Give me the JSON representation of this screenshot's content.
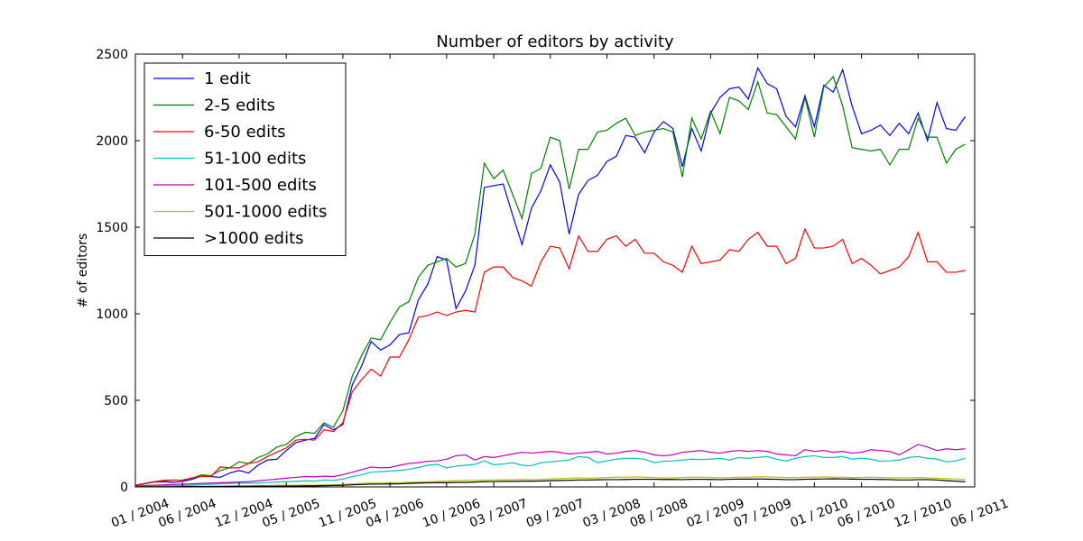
{
  "chart_data": {
    "type": "line",
    "title": "Number of editors by activity",
    "xlabel": "",
    "ylabel": "# of editors",
    "ylim": [
      0,
      2500
    ],
    "y_ticks": [
      0,
      500,
      1000,
      1500,
      2000,
      2500
    ],
    "x_tick_labels": [
      "01 / 2004",
      "06 / 2004",
      "12 / 2004",
      "05 / 2005",
      "11 / 2005",
      "04 / 2006",
      "10 / 2006",
      "03 / 2007",
      "09 / 2007",
      "03 / 2008",
      "08 / 2008",
      "02 / 2009",
      "07 / 2009",
      "01 / 2010",
      "06 / 2010",
      "12 / 2010",
      "06 / 2011"
    ],
    "x_tick_dates": [
      "2004-01",
      "2004-06",
      "2004-12",
      "2005-05",
      "2005-11",
      "2006-04",
      "2006-10",
      "2007-03",
      "2007-09",
      "2008-03",
      "2008-08",
      "2009-02",
      "2009-07",
      "2010-01",
      "2010-06",
      "2010-12",
      "2011-06"
    ],
    "xlim": [
      "2004-01",
      "2011-06"
    ],
    "legend_position": "top-left",
    "grid": false,
    "x_start": "2004-01",
    "x_step": "month",
    "series": [
      {
        "name": "1 edit",
        "color": "#0000ff",
        "values": [
          8,
          18,
          28,
          30,
          26,
          32,
          44,
          62,
          60,
          55,
          80,
          95,
          80,
          125,
          155,
          160,
          210,
          255,
          270,
          280,
          360,
          330,
          360,
          590,
          700,
          840,
          790,
          820,
          880,
          890,
          1080,
          1170,
          1330,
          1310,
          1030,
          1130,
          1280,
          1730,
          1740,
          1750,
          1570,
          1400,
          1610,
          1710,
          1860,
          1760,
          1460,
          1690,
          1770,
          1800,
          1880,
          1910,
          2030,
          2020,
          1930,
          2050,
          2110,
          2070,
          1850,
          2070,
          1940,
          2160,
          2250,
          2300,
          2310,
          2240,
          2420,
          2330,
          2300,
          2140,
          2080,
          2260,
          2080,
          2320,
          2280,
          2410,
          2200,
          2040,
          2060,
          2090,
          2030,
          2100,
          2040,
          2160,
          2000,
          2220,
          2070,
          2060,
          2140
        ]
      },
      {
        "name": "2-5 edits",
        "color": "#008000",
        "values": [
          10,
          20,
          30,
          35,
          38,
          40,
          50,
          70,
          65,
          95,
          110,
          145,
          135,
          170,
          190,
          230,
          245,
          290,
          315,
          310,
          370,
          345,
          440,
          640,
          760,
          860,
          850,
          950,
          1040,
          1070,
          1210,
          1280,
          1300,
          1320,
          1270,
          1290,
          1460,
          1870,
          1780,
          1830,
          1690,
          1550,
          1810,
          1840,
          2020,
          2000,
          1720,
          1950,
          1950,
          2050,
          2060,
          2100,
          2130,
          2030,
          2050,
          2060,
          2070,
          2050,
          1790,
          2130,
          2010,
          2170,
          2040,
          2250,
          2230,
          2180,
          2340,
          2160,
          2150,
          2080,
          2010,
          2250,
          2020,
          2310,
          2370,
          2200,
          1960,
          1950,
          1940,
          1950,
          1860,
          1950,
          1950,
          2130,
          2020,
          2020,
          1870,
          1950,
          1980
        ]
      },
      {
        "name": "6-50 edits",
        "color": "#ff0000",
        "values": [
          10,
          20,
          30,
          38,
          40,
          38,
          52,
          60,
          60,
          115,
          110,
          110,
          135,
          145,
          175,
          200,
          225,
          270,
          275,
          270,
          330,
          320,
          370,
          550,
          620,
          680,
          640,
          750,
          750,
          850,
          980,
          990,
          1010,
          990,
          1010,
          1020,
          1010,
          1240,
          1270,
          1270,
          1210,
          1190,
          1160,
          1300,
          1390,
          1380,
          1260,
          1450,
          1360,
          1360,
          1430,
          1450,
          1390,
          1430,
          1350,
          1350,
          1300,
          1280,
          1240,
          1390,
          1290,
          1300,
          1310,
          1370,
          1360,
          1430,
          1470,
          1390,
          1390,
          1290,
          1320,
          1490,
          1380,
          1380,
          1390,
          1430,
          1290,
          1320,
          1280,
          1230,
          1250,
          1270,
          1330,
          1470,
          1300,
          1300,
          1240,
          1240,
          1250
        ]
      },
      {
        "name": "51-100 edits",
        "color": "#00bfbf",
        "values": [
          3,
          4,
          6,
          8,
          8,
          9,
          11,
          14,
          15,
          18,
          20,
          22,
          22,
          22,
          25,
          28,
          30,
          32,
          35,
          33,
          40,
          38,
          45,
          60,
          70,
          85,
          88,
          92,
          95,
          102,
          112,
          125,
          130,
          110,
          120,
          125,
          130,
          150,
          128,
          132,
          140,
          125,
          122,
          140,
          145,
          150,
          155,
          175,
          170,
          140,
          150,
          160,
          165,
          165,
          160,
          140,
          148,
          150,
          155,
          160,
          158,
          160,
          165,
          155,
          170,
          165,
          170,
          175,
          160,
          150,
          165,
          175,
          180,
          170,
          170,
          175,
          160,
          165,
          160,
          148,
          150,
          155,
          170,
          175,
          165,
          160,
          145,
          150,
          165
        ]
      },
      {
        "name": "101-500 edits",
        "color": "#bf00bf",
        "values": [
          5,
          8,
          10,
          12,
          14,
          16,
          18,
          20,
          22,
          24,
          26,
          28,
          30,
          35,
          40,
          45,
          50,
          55,
          60,
          58,
          62,
          60,
          70,
          85,
          100,
          115,
          110,
          112,
          125,
          135,
          140,
          148,
          150,
          160,
          180,
          185,
          155,
          175,
          170,
          180,
          190,
          200,
          195,
          200,
          205,
          200,
          190,
          195,
          200,
          205,
          190,
          195,
          205,
          210,
          200,
          185,
          180,
          185,
          200,
          205,
          210,
          200,
          195,
          205,
          210,
          205,
          210,
          205,
          190,
          185,
          180,
          215,
          205,
          210,
          200,
          205,
          195,
          200,
          215,
          210,
          205,
          185,
          215,
          245,
          230,
          210,
          220,
          215,
          220
        ]
      },
      {
        "name": "501-1000 edits",
        "color": "#bfbf00",
        "values": [
          1,
          2,
          2,
          3,
          3,
          4,
          4,
          5,
          5,
          6,
          6,
          7,
          7,
          8,
          8,
          9,
          9,
          10,
          10,
          10,
          12,
          12,
          14,
          18,
          20,
          22,
          22,
          24,
          25,
          26,
          28,
          30,
          32,
          34,
          36,
          38,
          38,
          40,
          40,
          42,
          42,
          44,
          42,
          44,
          46,
          48,
          50,
          52,
          50,
          52,
          54,
          56,
          56,
          58,
          56,
          54,
          52,
          52,
          54,
          56,
          56,
          54,
          52,
          54,
          56,
          56,
          58,
          58,
          56,
          54,
          54,
          56,
          56,
          58,
          56,
          56,
          54,
          54,
          56,
          54,
          52,
          52,
          52,
          54,
          52,
          50,
          48,
          46,
          44
        ]
      },
      {
        "name": ">1000 edits",
        "color": "#000000",
        "values": [
          1,
          1,
          1,
          1,
          1,
          2,
          2,
          2,
          2,
          2,
          3,
          3,
          3,
          4,
          4,
          4,
          5,
          5,
          6,
          6,
          7,
          8,
          9,
          12,
          14,
          16,
          16,
          17,
          18,
          20,
          22,
          23,
          24,
          24,
          26,
          26,
          28,
          30,
          31,
          32,
          32,
          33,
          33,
          34,
          36,
          37,
          38,
          40,
          40,
          41,
          42,
          42,
          43,
          44,
          44,
          44,
          43,
          43,
          42,
          44,
          44,
          43,
          42,
          44,
          45,
          45,
          46,
          45,
          44,
          42,
          42,
          44,
          45,
          46,
          47,
          46,
          45,
          44,
          44,
          43,
          42,
          40,
          40,
          42,
          42,
          40,
          36,
          33,
          30
        ]
      }
    ]
  }
}
